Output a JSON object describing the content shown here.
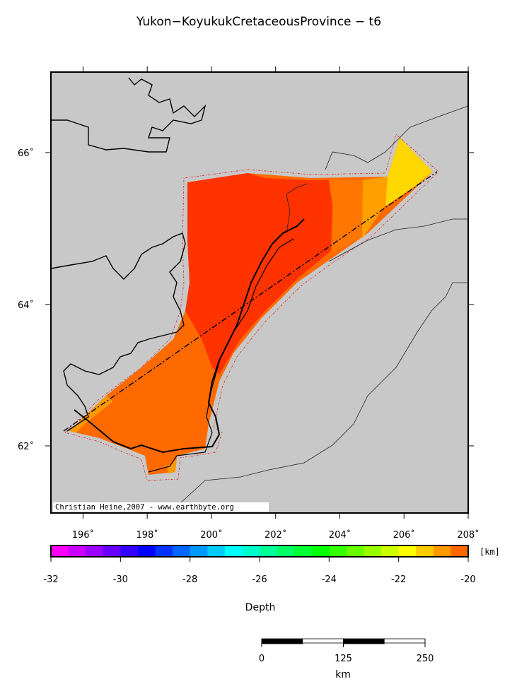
{
  "title": "Yukon−KoyukukCretaceousProvince − t6",
  "map": {
    "xlim": [
      195,
      208
    ],
    "xticks": [
      {
        "value": 196,
        "label": "196˚"
      },
      {
        "value": 198,
        "label": "198˚"
      },
      {
        "value": 200,
        "label": "200˚"
      },
      {
        "value": 202,
        "label": "202˚"
      },
      {
        "value": 204,
        "label": "204˚"
      },
      {
        "value": 206,
        "label": "206˚"
      },
      {
        "value": 208,
        "label": "208˚"
      }
    ],
    "yticks": [
      {
        "value": 62,
        "label": "62˚"
      },
      {
        "value": 64,
        "label": "64˚"
      },
      {
        "value": 66,
        "label": "66˚"
      }
    ],
    "credit": "Christian Heine,2007 - www.earthbyte.org"
  },
  "colorbar": {
    "label": "Depth",
    "unit": "[km]",
    "lim": [
      -32,
      -20
    ],
    "ticks": [
      -32,
      -30,
      -28,
      -26,
      -24,
      -22,
      -20
    ],
    "colors": [
      "#ff00ff",
      "#cc00ff",
      "#9900ff",
      "#6600ff",
      "#3300ff",
      "#0000ff",
      "#0033ff",
      "#0066ff",
      "#0099ff",
      "#00ccff",
      "#00ffff",
      "#00ffcc",
      "#00ff99",
      "#00ff66",
      "#00ff33",
      "#00ff00",
      "#33ff00",
      "#66ff00",
      "#99ff00",
      "#ccff00",
      "#ffff00",
      "#ffcc00",
      "#ff9900",
      "#ff6600"
    ]
  },
  "scalebar": {
    "lim": [
      0,
      250
    ],
    "ticks": [
      0,
      125,
      250
    ],
    "unit": "km"
  }
}
